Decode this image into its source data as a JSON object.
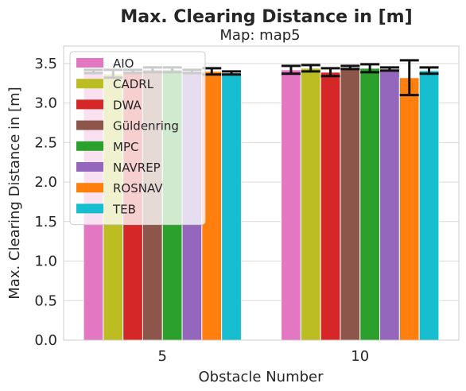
{
  "chart_data": {
    "type": "bar",
    "title": "Max. Clearing Distance in [m]",
    "subtitle": "Map: map5",
    "xlabel": "Obstacle Number",
    "ylabel": "Max. Clearing Distance in [m]",
    "categories": [
      "5",
      "10"
    ],
    "ylim": [
      0,
      3.72
    ],
    "yticks": [
      "0.0",
      "0.5",
      "1.0",
      "1.5",
      "2.0",
      "2.5",
      "3.0",
      "3.5"
    ],
    "grid": true,
    "legend_position": "top-left",
    "series": [
      {
        "name": "AIO",
        "color": "#e377c2",
        "values": [
          3.4,
          3.42
        ],
        "error": [
          0.02,
          0.05
        ]
      },
      {
        "name": "CADRL",
        "color": "#bcbd22",
        "values": [
          3.37,
          3.44
        ],
        "error": [
          0.05,
          0.04
        ]
      },
      {
        "name": "DWA",
        "color": "#d62728",
        "values": [
          3.4,
          3.39
        ],
        "error": [
          0.02,
          0.05
        ]
      },
      {
        "name": "Güldenring",
        "color": "#8c564b",
        "values": [
          3.42,
          3.45
        ],
        "error": [
          0.03,
          0.02
        ]
      },
      {
        "name": "MPC",
        "color": "#2ca02c",
        "values": [
          3.42,
          3.44
        ],
        "error": [
          0.03,
          0.05
        ]
      },
      {
        "name": "NAVREP",
        "color": "#9467bd",
        "values": [
          3.4,
          3.43
        ],
        "error": [
          0.02,
          0.02
        ]
      },
      {
        "name": "ROSNAV",
        "color": "#ff7f0e",
        "values": [
          3.4,
          3.32
        ],
        "error": [
          0.04,
          0.22
        ]
      },
      {
        "name": "TEB",
        "color": "#17becf",
        "values": [
          3.38,
          3.41
        ],
        "error": [
          0.02,
          0.04
        ]
      }
    ]
  }
}
